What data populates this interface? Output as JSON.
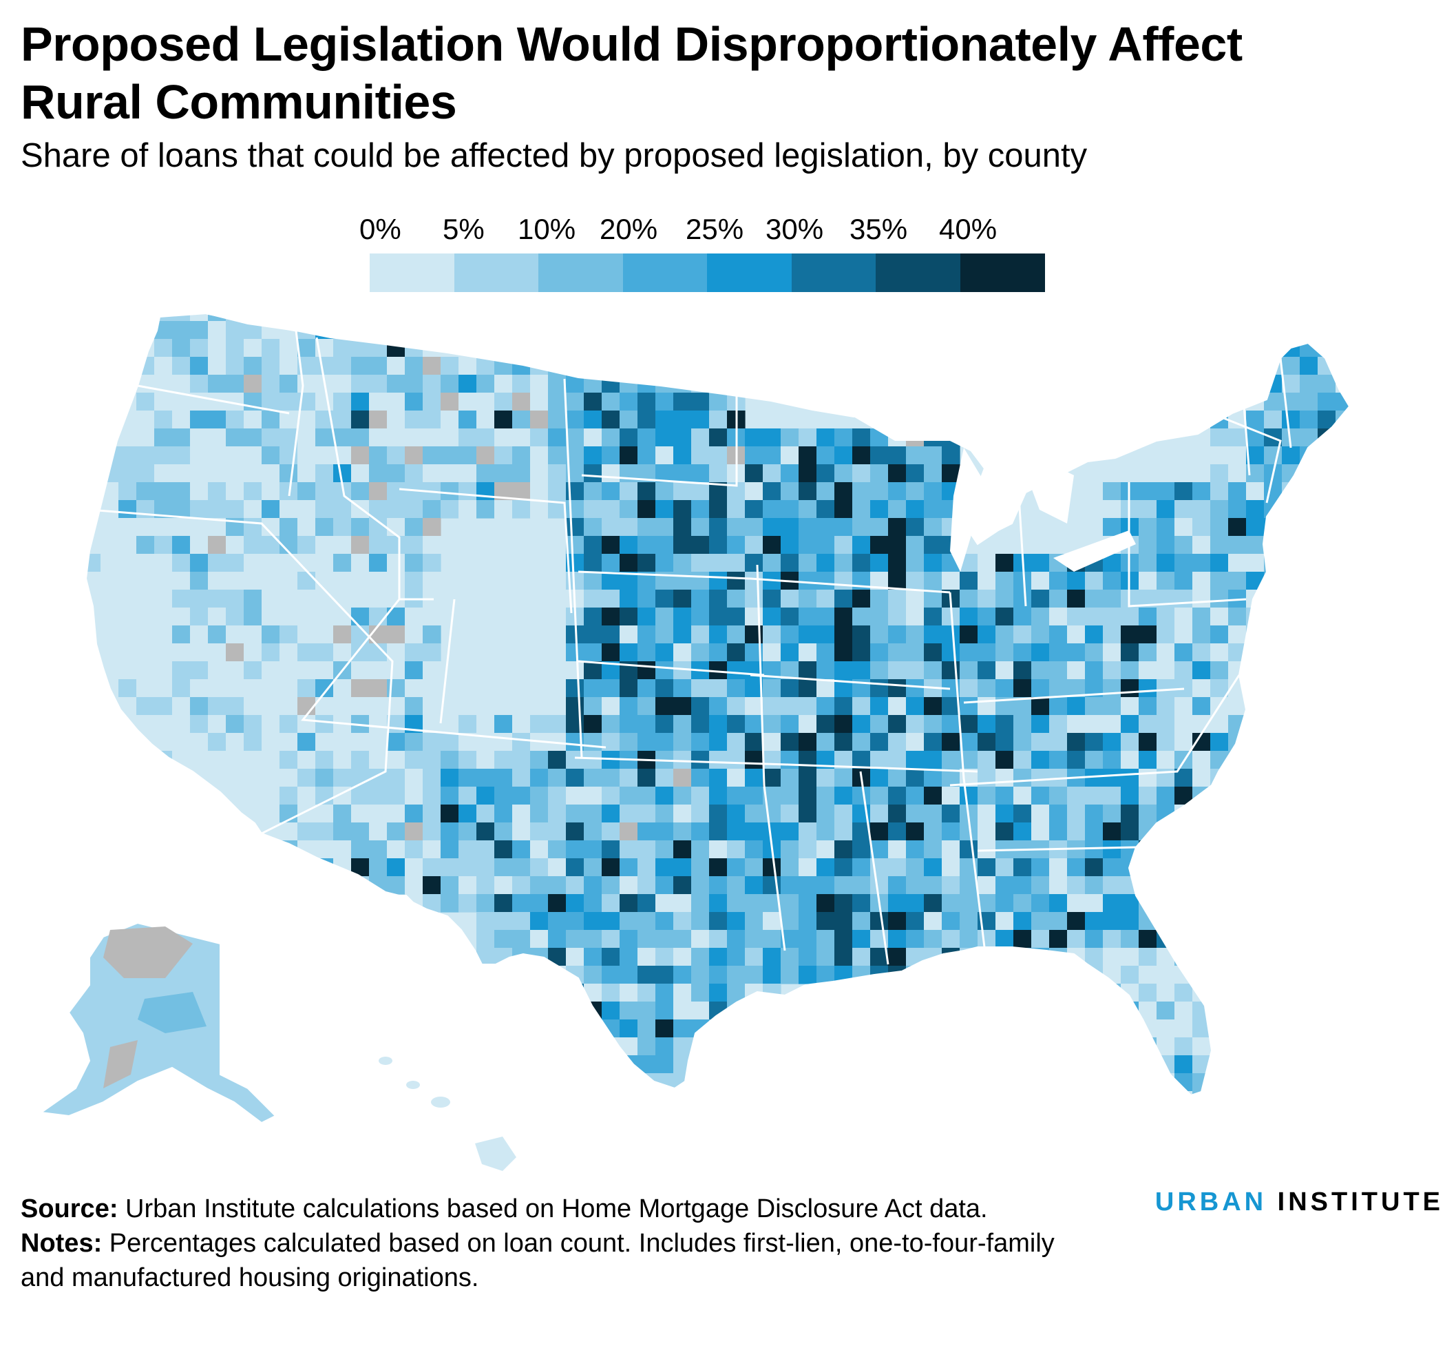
{
  "title": "Proposed Legislation Would Disproportionately Affect Rural Communities",
  "subtitle": "Share of loans that could be affected by proposed legislation, by county",
  "legend": {
    "labels": [
      "0%",
      "5%",
      "10%",
      "20%",
      "25%",
      "30%",
      "35%",
      "40%"
    ],
    "colors": [
      "#cfe8f3",
      "#a2d4ec",
      "#73bfe2",
      "#46abdb",
      "#1696d2",
      "#12719e",
      "#0a4c6a",
      "#062635"
    ]
  },
  "no_data_color": "#b8b8b8",
  "state_border_color": "#ffffff",
  "footer": {
    "source_label": "Source:",
    "source_text": "Urban Institute calculations based on Home Mortgage Disclosure Act data.",
    "notes_label": "Notes:",
    "notes_text": "Percentages calculated based on loan count. Includes first-lien, one-to-four-family and manufactured housing originations."
  },
  "logo": {
    "word1": "URBAN",
    "word2": "INSTITUTE"
  }
}
